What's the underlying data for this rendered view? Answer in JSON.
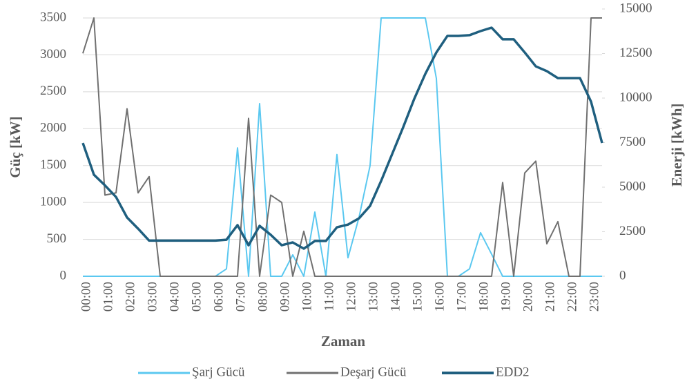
{
  "chart_data": {
    "type": "line",
    "x_label": "Zaman",
    "y_label": "Güç [kW]",
    "y2_label": "Enerji [kWh]",
    "categories": [
      "00:00",
      null,
      "01:00",
      null,
      "02:00",
      null,
      "03:00",
      null,
      "04:00",
      null,
      "05:00",
      null,
      "06:00",
      null,
      "07:00",
      null,
      "08:00",
      null,
      "09:00",
      null,
      "10:00",
      null,
      "11:00",
      null,
      "12:00",
      null,
      "13:00",
      null,
      "14:00",
      null,
      "15:00",
      null,
      "16:00",
      null,
      "17:00",
      null,
      "18:00",
      null,
      "19:00",
      null,
      "20:00",
      null,
      "21:00",
      null,
      "22:00",
      null,
      "23:00",
      null
    ],
    "series": [
      {
        "name": "Şarj Gücü",
        "color": "#5bc8f0",
        "values": [
          0,
          0,
          0,
          0,
          0,
          0,
          0,
          0,
          0,
          0,
          0,
          0,
          0,
          100,
          1740,
          0,
          2340,
          0,
          0,
          290,
          0,
          870,
          0,
          1650,
          250,
          800,
          1500,
          3500,
          3500,
          3500,
          3500,
          3500,
          2680,
          0,
          0,
          100,
          590,
          300,
          0,
          0,
          0,
          0,
          0,
          0,
          0,
          0,
          0,
          0
        ]
      },
      {
        "name": "Deşarj Gücü",
        "color": "#707070",
        "values": [
          3020,
          3500,
          1100,
          1130,
          2270,
          1130,
          1350,
          0,
          0,
          0,
          0,
          0,
          0,
          0,
          0,
          2140,
          0,
          1100,
          1000,
          0,
          610,
          0,
          0,
          0,
          0,
          0,
          0,
          0,
          0,
          0,
          0,
          0,
          0,
          0,
          0,
          0,
          0,
          0,
          1270,
          0,
          1400,
          1560,
          440,
          740,
          0,
          0,
          3500,
          3500
        ]
      },
      {
        "name": "EDD2",
        "color": "#1f5f7f",
        "axis": "y2",
        "values": [
          7480,
          5700,
          5100,
          4450,
          3300,
          2670,
          2000,
          2000,
          2000,
          2000,
          2000,
          2000,
          2000,
          2050,
          2870,
          1740,
          2830,
          2330,
          1740,
          1900,
          1550,
          1980,
          1980,
          2750,
          2900,
          3250,
          3950,
          5350,
          6860,
          8370,
          9960,
          11360,
          12560,
          13490,
          13490,
          13530,
          13760,
          13950,
          13300,
          13300,
          12560,
          11780,
          11510,
          11120,
          11120,
          11120,
          9800,
          7480
        ]
      }
    ],
    "ylim": [
      0,
      3500
    ],
    "yticks": [
      0,
      500,
      1000,
      1500,
      2000,
      2500,
      3000,
      3500
    ],
    "y2lim": [
      0,
      15000
    ],
    "y2ticks": [
      0,
      2500,
      5000,
      7500,
      10000,
      12500,
      15000
    ],
    "grid": true,
    "legend": "bottom"
  }
}
